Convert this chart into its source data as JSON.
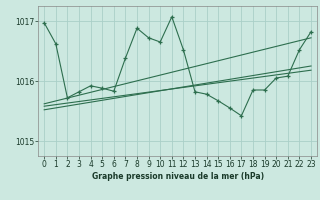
{
  "title": "Graphe pression niveau de la mer (hPa)",
  "bg_color": "#cce8e0",
  "plot_bg_color": "#cce8e0",
  "grid_color": "#aacfc8",
  "line_color": "#2d6e4e",
  "xlim": [
    -0.5,
    23.5
  ],
  "ylim": [
    1014.75,
    1017.25
  ],
  "yticks": [
    1015,
    1016,
    1017
  ],
  "xticks": [
    0,
    1,
    2,
    3,
    4,
    5,
    6,
    7,
    8,
    9,
    10,
    11,
    12,
    13,
    14,
    15,
    16,
    17,
    18,
    19,
    20,
    21,
    22,
    23
  ],
  "main_data_x": [
    0,
    1,
    2,
    3,
    4,
    5,
    6,
    7,
    8,
    9,
    10,
    11,
    12,
    13,
    14,
    15,
    16,
    17,
    18,
    19,
    20,
    21,
    22,
    23
  ],
  "main_data_y": [
    1016.97,
    1016.62,
    1015.72,
    1015.82,
    1015.92,
    1015.88,
    1015.83,
    1016.38,
    1016.88,
    1016.72,
    1016.65,
    1017.07,
    1016.52,
    1015.82,
    1015.78,
    1015.67,
    1015.55,
    1015.42,
    1015.85,
    1015.85,
    1016.05,
    1016.08,
    1016.52,
    1016.82
  ],
  "trend1_x": [
    0,
    23
  ],
  "trend1_y": [
    1015.58,
    1016.18
  ],
  "trend2_x": [
    0,
    23
  ],
  "trend2_y": [
    1015.52,
    1016.25
  ],
  "trend3_x": [
    0,
    23
  ],
  "trend3_y": [
    1015.62,
    1016.72
  ],
  "xlabel_fontsize": 5.5,
  "tick_fontsize": 5.5,
  "linewidth": 0.8,
  "marker_size": 3.5
}
